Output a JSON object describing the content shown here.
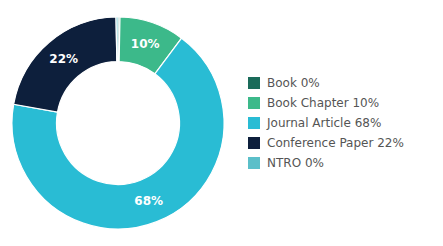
{
  "chart_data": {
    "type": "donut",
    "categories": [
      "Book 0%",
      "Book Chapter 10%",
      "Journal Article 68%",
      "Conference Paper 22%",
      "NTRO 0%"
    ],
    "values": [
      0.3,
      10,
      68,
      22,
      0.3
    ],
    "value_labels": [
      null,
      "10%",
      "68%",
      "22%",
      null
    ],
    "data_labels": true,
    "colors": [
      "#1a6b5a",
      "#3cb98a",
      "#29bcd4",
      "#0d1f3c",
      "#5bbfc9"
    ],
    "legend": "right"
  }
}
